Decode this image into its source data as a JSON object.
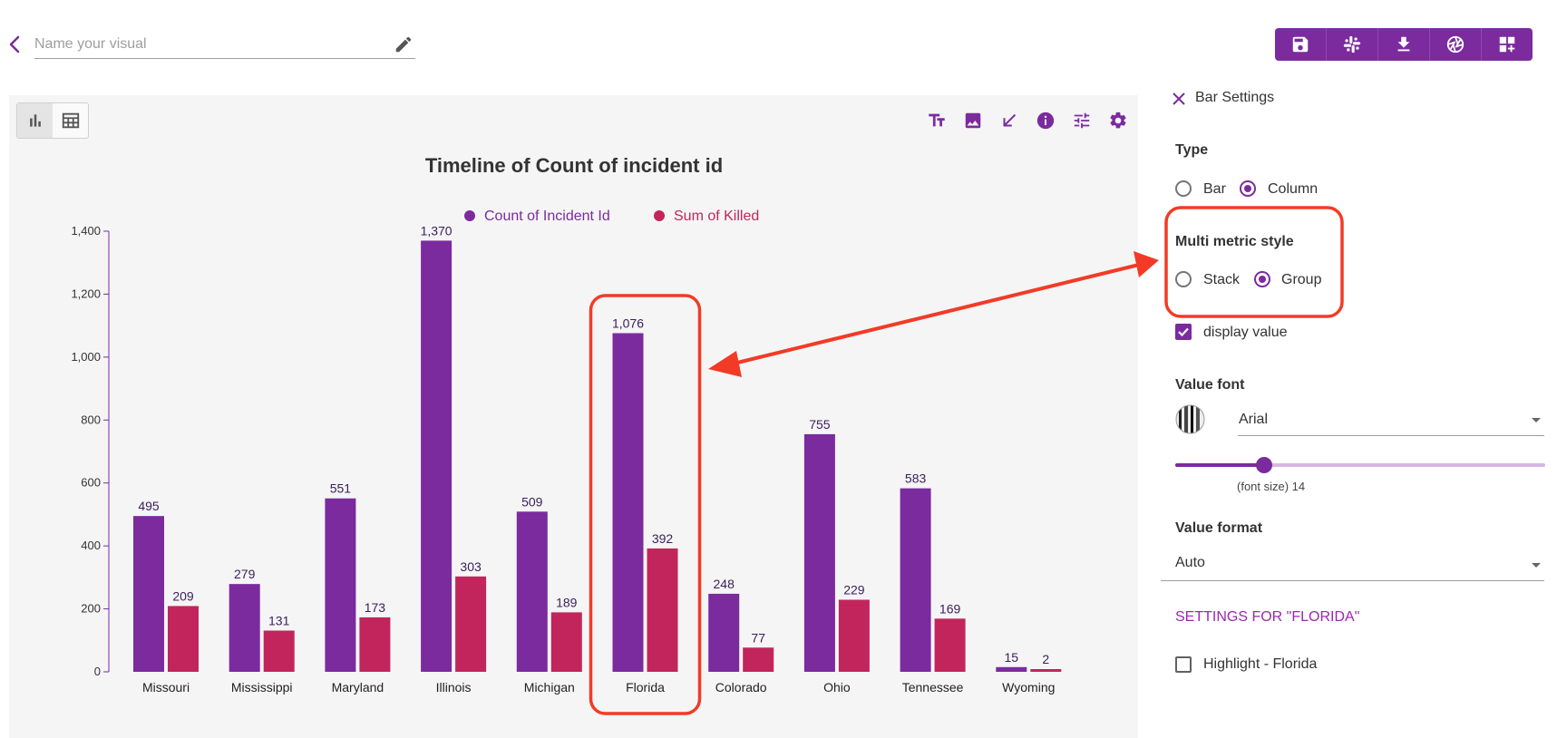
{
  "header": {
    "name_placeholder": "Name your visual",
    "name_value": "",
    "toolbar": [
      {
        "name": "save-icon"
      },
      {
        "name": "slack-icon"
      },
      {
        "name": "download-icon"
      },
      {
        "name": "aperture-icon"
      },
      {
        "name": "add-to-dashboard-icon"
      }
    ]
  },
  "chart_view": {
    "active": "chart",
    "tools": [
      "text-format-icon",
      "image-icon",
      "arrow-icon",
      "info-icon",
      "tune-icon",
      "gear-icon"
    ]
  },
  "colors": {
    "accent": "#7b2b9e",
    "series_count": "#7b2b9e",
    "series_killed": "#c2255c",
    "annotation": "#f23b27"
  },
  "chart_data": {
    "type": "bar",
    "title": "Timeline of Count of incident id",
    "categories": [
      "Missouri",
      "Mississippi",
      "Maryland",
      "Illinois",
      "Michigan",
      "Florida",
      "Colorado",
      "Ohio",
      "Tennessee",
      "Wyoming"
    ],
    "series": [
      {
        "name": "Count of Incident Id",
        "values": [
          495,
          279,
          551,
          1370,
          509,
          1076,
          248,
          755,
          583,
          15
        ],
        "labels": [
          "495",
          "279",
          "551",
          "1,370",
          "509",
          "1,076",
          "248",
          "755",
          "583",
          "15"
        ]
      },
      {
        "name": "Sum of Killed",
        "values": [
          209,
          131,
          173,
          303,
          189,
          392,
          77,
          229,
          169,
          2
        ],
        "labels": [
          "209",
          "131",
          "173",
          "303",
          "189",
          "392",
          "77",
          "229",
          "169",
          "2"
        ]
      }
    ],
    "ylim": [
      0,
      1400
    ],
    "yticks": [
      0,
      200,
      400,
      600,
      800,
      1000,
      1200,
      1400
    ],
    "ytick_labels": [
      "0",
      "200",
      "400",
      "600",
      "800",
      "1,000",
      "1,200",
      "1,400"
    ],
    "legend": "top-center",
    "grid": false,
    "highlight_category": "Florida"
  },
  "settings": {
    "title": "Bar Settings",
    "type_label": "Type",
    "type_options": [
      "Bar",
      "Column"
    ],
    "type_selected": "Column",
    "multi_label": "Multi metric style",
    "multi_options": [
      "Stack",
      "Group"
    ],
    "multi_selected": "Group",
    "display_value_label": "display value",
    "display_value_checked": true,
    "value_font_label": "Value font",
    "font_value": "Arial",
    "font_size_label": "(font size) 14",
    "font_size_fraction": 0.24,
    "value_format_label": "Value format",
    "format_value": "Auto",
    "section_label": "SETTINGS FOR \"FLORIDA\"",
    "highlight_label": "Highlight - Florida",
    "highlight_checked": false
  }
}
